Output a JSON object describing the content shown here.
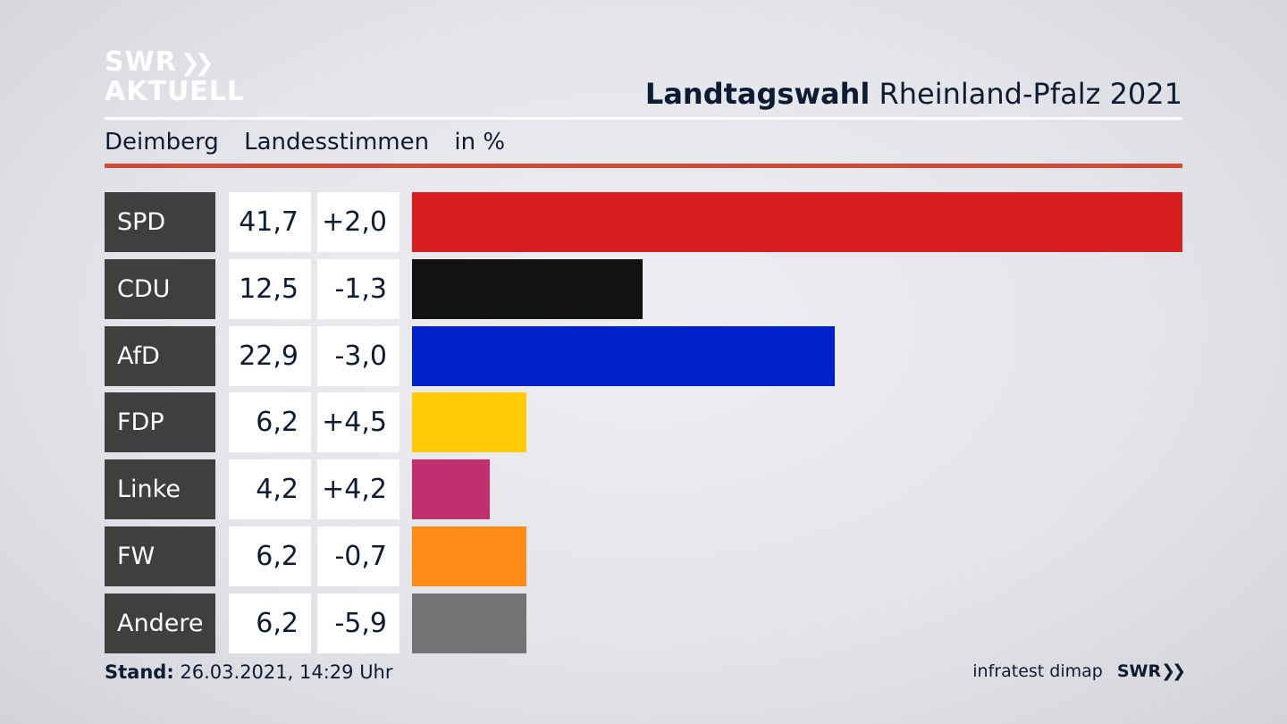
{
  "logo": {
    "line1": "SWR",
    "line1_icon": "double-chevron-icon",
    "line2": "AKTUELL"
  },
  "header": {
    "title_bold": "Landtagswahl",
    "title_rest": "Rheinland-Pfalz 2021"
  },
  "subheader": {
    "place": "Deimberg",
    "measure": "Landesstimmen",
    "unit": "in %"
  },
  "footer": {
    "stand_label": "Stand:",
    "stand_value": "26.03.2021, 14:29 Uhr",
    "source": "infratest dimap",
    "brand": "SWR",
    "brand_icon": "double-chevron-icon"
  },
  "colors": {
    "accent_rule": "#d04a3a",
    "label_bg": "#3f3f3d"
  },
  "chart_data": {
    "type": "bar",
    "orientation": "horizontal",
    "categories": [
      "SPD",
      "CDU",
      "AfD",
      "FDP",
      "Linke",
      "FW",
      "Andere"
    ],
    "values": [
      41.7,
      12.5,
      22.9,
      6.2,
      4.2,
      6.2,
      6.2
    ],
    "display_values": [
      "41,7",
      "12,5",
      "22,9",
      "6,2",
      "4,2",
      "6,2",
      "6,2"
    ],
    "changes": [
      "+2,0",
      "-1,3",
      "-3,0",
      "+4,5",
      "+4,2",
      "-0,7",
      "-5,9"
    ],
    "colors": [
      "#d71f1f",
      "#121212",
      "#0021c8",
      "#ffcc07",
      "#c0306f",
      "#ff8c17",
      "#737373"
    ],
    "xlim": [
      0,
      41.7
    ],
    "grid": false,
    "legend": "none"
  }
}
